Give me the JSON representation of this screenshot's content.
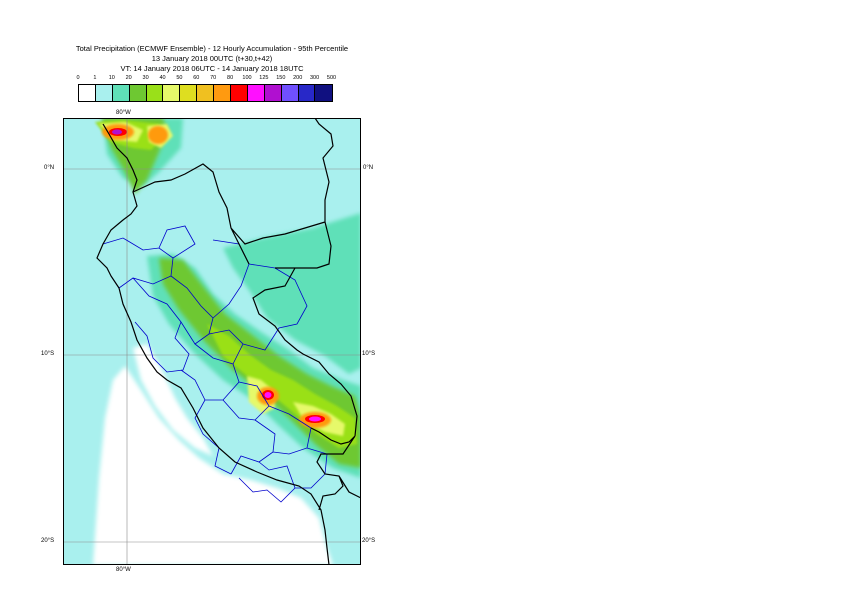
{
  "title": {
    "line1": "Total Precipitation (ECMWF Ensemble) - 12 Hourly Accumulation - 95th Percentile",
    "line2": "13 January 2018 00UTC (t+30,t+42)",
    "line3": "VT: 14 January 2018 06UTC - 14 January 2018 18UTC"
  },
  "legend": {
    "thresholds": [
      "0",
      "1",
      "10",
      "20",
      "30",
      "40",
      "50",
      "60",
      "70",
      "80",
      "100",
      "125",
      "150",
      "200",
      "300",
      "500"
    ],
    "colors": [
      "#ffffff",
      "#a9f0ee",
      "#5fe0b8",
      "#6ec832",
      "#9ae019",
      "#e6f96a",
      "#dede20",
      "#f0c020",
      "#ff9a10",
      "#ff0000",
      "#ff10ff",
      "#b010d0",
      "#7050ff",
      "#2828c8",
      "#101080"
    ]
  },
  "axes": {
    "lon_top": "80°W",
    "lon_bottom": "80°W",
    "lat_0_left": "0°N",
    "lat_0_right": "0°N",
    "lat_10_left": "10°S",
    "lat_10_right": "10°S",
    "lat_20_left": "20°S",
    "lat_20_right": "20°S"
  },
  "map_colors": {
    "ocean_light": "#a9f0ee",
    "medium": "#5fe0b8",
    "green": "#6ec832",
    "lime": "#9ae019",
    "yellow": "#e6f96a",
    "orange": "#ff9a10",
    "red": "#ff0000",
    "magenta": "#ff10ff",
    "purple": "#b010d0",
    "country_border": "#000000",
    "region_border": "#0000cc",
    "grid": "#8c8c8c"
  }
}
